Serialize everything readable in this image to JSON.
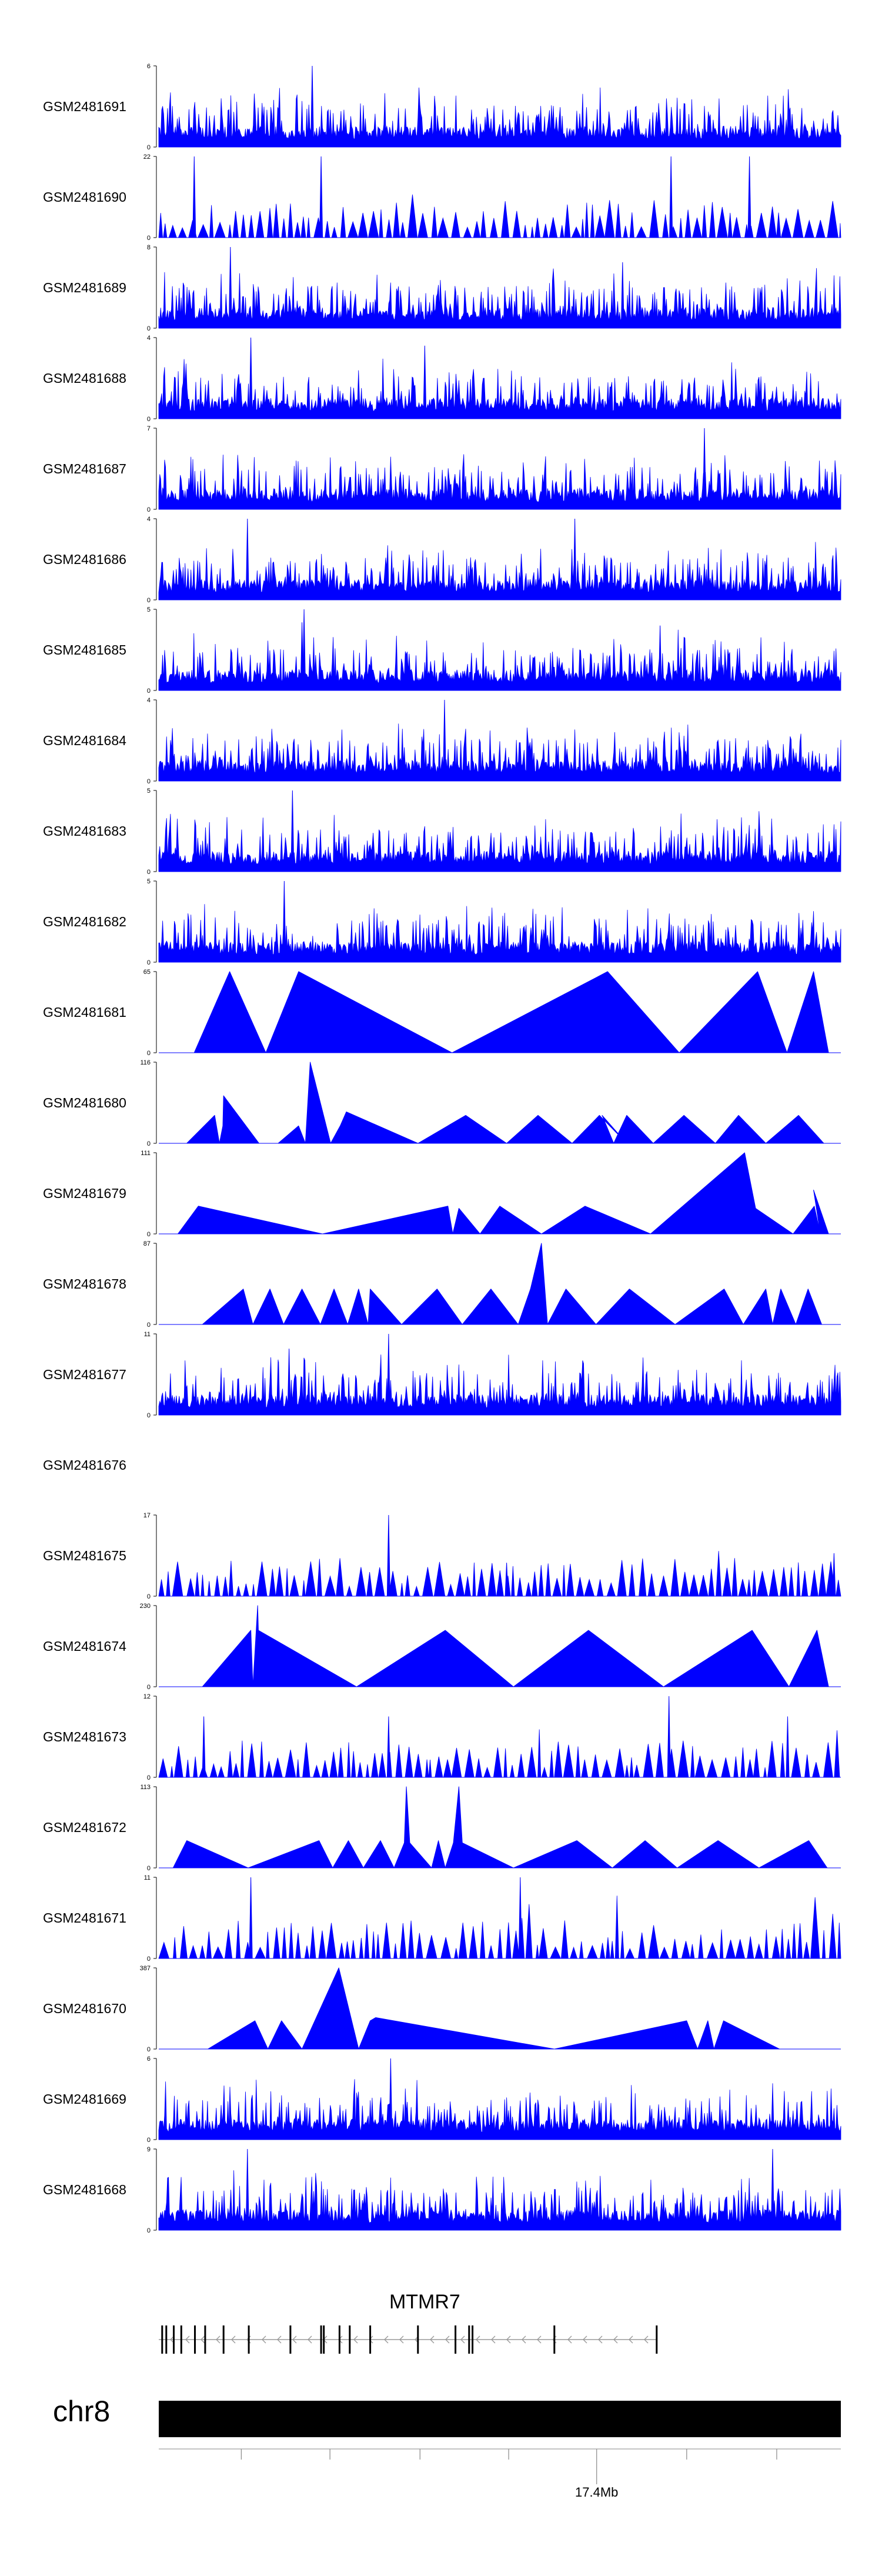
{
  "chart_data": {
    "type": "area",
    "description_kind": "genome coverage tracks",
    "fill_color": "#0000ff",
    "tracks": [
      {
        "name": "GSM2481691",
        "ymax": 6,
        "style": "dense",
        "seed": 11,
        "spikes": [
          [
            0.225,
            6.0
          ]
        ]
      },
      {
        "name": "GSM2481690",
        "ymax": 22,
        "style": "bursts",
        "seed": 12,
        "spikes": [
          [
            0.052,
            22.0
          ],
          [
            0.238,
            22.0
          ],
          [
            0.751,
            22.0
          ],
          [
            0.866,
            22.0
          ]
        ]
      },
      {
        "name": "GSM2481689",
        "ymax": 8,
        "style": "dense",
        "seed": 13,
        "spikes": [
          [
            0.105,
            8.0
          ],
          [
            0.68,
            6.5
          ]
        ]
      },
      {
        "name": "GSM2481688",
        "ymax": 4,
        "style": "dense",
        "seed": 14,
        "spikes": [
          [
            0.135,
            4.0
          ],
          [
            0.39,
            3.6
          ]
        ]
      },
      {
        "name": "GSM2481687",
        "ymax": 7,
        "style": "dense",
        "seed": 15,
        "spikes": [
          [
            0.8,
            7.0
          ]
        ]
      },
      {
        "name": "GSM2481686",
        "ymax": 4,
        "style": "dense",
        "seed": 16,
        "spikes": [
          [
            0.13,
            4.0
          ],
          [
            0.61,
            4.0
          ]
        ]
      },
      {
        "name": "GSM2481685",
        "ymax": 5,
        "style": "dense",
        "seed": 17,
        "spikes": [
          [
            0.213,
            5.0
          ],
          [
            0.21,
            4.2
          ],
          [
            0.735,
            4.0
          ]
        ]
      },
      {
        "name": "GSM2481684",
        "ymax": 4,
        "style": "dense",
        "seed": 18,
        "spikes": [
          [
            0.419,
            4.0
          ]
        ]
      },
      {
        "name": "GSM2481683",
        "ymax": 5,
        "style": "dense",
        "seed": 19,
        "spikes": [
          [
            0.196,
            5.0
          ]
        ]
      },
      {
        "name": "GSM2481682",
        "ymax": 5,
        "style": "dense",
        "seed": 20,
        "spikes": [
          [
            0.184,
            5.0
          ]
        ]
      },
      {
        "name": "GSM2481681",
        "ymax": 65,
        "style": "peaks",
        "points": [
          [
            0.052,
            0
          ],
          [
            0.104,
            65
          ],
          [
            0.157,
            0
          ],
          [
            0.157,
            0
          ],
          [
            0.205,
            65
          ],
          [
            0.43,
            0
          ],
          [
            0.43,
            0
          ],
          [
            0.658,
            65
          ],
          [
            0.763,
            0
          ],
          [
            0.763,
            0
          ],
          [
            0.878,
            65
          ],
          [
            0.921,
            0
          ],
          [
            0.921,
            0
          ],
          [
            0.96,
            65
          ],
          [
            0.982,
            0
          ]
        ]
      },
      {
        "name": "GSM2481680",
        "ymax": 116,
        "style": "peaks",
        "points": [
          [
            0.041,
            0
          ],
          [
            0.082,
            40
          ],
          [
            0.089,
            0
          ],
          [
            0.089,
            0
          ],
          [
            0.094,
            25
          ],
          [
            0.095,
            68
          ],
          [
            0.147,
            0
          ],
          [
            0.147,
            0
          ],
          [
            0.175,
            0
          ],
          [
            0.205,
            25
          ],
          [
            0.215,
            0
          ],
          [
            0.215,
            0
          ],
          [
            0.222,
            116
          ],
          [
            0.252,
            0
          ],
          [
            0.252,
            0
          ],
          [
            0.266,
            25
          ],
          [
            0.275,
            45
          ],
          [
            0.38,
            0
          ],
          [
            0.38,
            0
          ],
          [
            0.45,
            40
          ],
          [
            0.51,
            0
          ],
          [
            0.51,
            0
          ],
          [
            0.556,
            40
          ],
          [
            0.606,
            0
          ],
          [
            0.606,
            0
          ],
          [
            0.646,
            40
          ],
          [
            0.686,
            0
          ],
          [
            0.65,
            40
          ],
          [
            0.667,
            0
          ],
          [
            0.686,
            40
          ],
          [
            0.725,
            0
          ],
          [
            0.725,
            0
          ],
          [
            0.77,
            40
          ],
          [
            0.816,
            0
          ],
          [
            0.816,
            0
          ],
          [
            0.85,
            40
          ],
          [
            0.89,
            0
          ],
          [
            0.89,
            0
          ],
          [
            0.938,
            40
          ],
          [
            0.975,
            0
          ]
        ]
      },
      {
        "name": "GSM2481679",
        "ymax": 111,
        "style": "peaks",
        "points": [
          [
            0.028,
            0
          ],
          [
            0.058,
            38
          ],
          [
            0.24,
            0
          ],
          [
            0.24,
            0
          ],
          [
            0.424,
            38
          ],
          [
            0.431,
            0
          ],
          [
            0.431,
            0
          ],
          [
            0.44,
            35
          ],
          [
            0.471,
            0
          ],
          [
            0.471,
            0
          ],
          [
            0.5,
            38
          ],
          [
            0.561,
            0
          ],
          [
            0.561,
            0
          ],
          [
            0.625,
            38
          ],
          [
            0.721,
            0
          ],
          [
            0.721,
            0
          ],
          [
            0.859,
            111
          ],
          [
            0.875,
            35
          ],
          [
            0.93,
            0
          ],
          [
            0.93,
            0
          ],
          [
            0.961,
            38
          ],
          [
            0.97,
            0
          ],
          [
            0.96,
            60
          ],
          [
            0.982,
            0
          ]
        ]
      },
      {
        "name": "GSM2481678",
        "ymax": 87,
        "style": "peaks",
        "points": [
          [
            0.064,
            0
          ],
          [
            0.124,
            38
          ],
          [
            0.138,
            0
          ],
          [
            0.138,
            0
          ],
          [
            0.163,
            38
          ],
          [
            0.183,
            0
          ],
          [
            0.183,
            0
          ],
          [
            0.21,
            38
          ],
          [
            0.237,
            0
          ],
          [
            0.237,
            0
          ],
          [
            0.257,
            38
          ],
          [
            0.277,
            0
          ],
          [
            0.277,
            0
          ],
          [
            0.293,
            38
          ],
          [
            0.307,
            0
          ],
          [
            0.307,
            0
          ],
          [
            0.31,
            38
          ],
          [
            0.356,
            0
          ],
          [
            0.356,
            0
          ],
          [
            0.408,
            38
          ],
          [
            0.445,
            0
          ],
          [
            0.445,
            0
          ],
          [
            0.487,
            38
          ],
          [
            0.527,
            0
          ],
          [
            0.527,
            0
          ],
          [
            0.545,
            38
          ],
          [
            0.561,
            87
          ],
          [
            0.57,
            0
          ],
          [
            0.57,
            0
          ],
          [
            0.597,
            38
          ],
          [
            0.641,
            0
          ],
          [
            0.641,
            0
          ],
          [
            0.69,
            38
          ],
          [
            0.757,
            0
          ],
          [
            0.757,
            0
          ],
          [
            0.829,
            38
          ],
          [
            0.857,
            0
          ],
          [
            0.857,
            0
          ],
          [
            0.89,
            38
          ],
          [
            0.9,
            0
          ],
          [
            0.9,
            0
          ],
          [
            0.912,
            38
          ],
          [
            0.934,
            0
          ],
          [
            0.934,
            0
          ],
          [
            0.952,
            38
          ],
          [
            0.972,
            0
          ]
        ]
      },
      {
        "name": "GSM2481677",
        "ymax": 11,
        "style": "dense",
        "seed": 21,
        "spikes": [
          [
            0.191,
            9.0
          ],
          [
            0.175,
            7.5
          ],
          [
            0.337,
            11.0
          ]
        ]
      },
      {
        "name": "GSM2481676",
        "ymax": null,
        "style": "empty"
      },
      {
        "name": "GSM2481675",
        "ymax": 17,
        "style": "bursts",
        "seed": 22,
        "spikes": [
          [
            0.337,
            17.0
          ],
          [
            0.51,
            7
          ],
          [
            0.99,
            9
          ]
        ]
      },
      {
        "name": "GSM2481674",
        "ymax": 230,
        "style": "peaks",
        "points": [
          [
            0.064,
            0
          ],
          [
            0.135,
            160
          ],
          [
            0.138,
            0
          ],
          [
            0.145,
            230
          ],
          [
            0.146,
            160
          ],
          [
            0.29,
            0
          ],
          [
            0.29,
            0
          ],
          [
            0.42,
            160
          ],
          [
            0.52,
            0
          ],
          [
            0.52,
            0
          ],
          [
            0.63,
            160
          ],
          [
            0.74,
            0
          ],
          [
            0.74,
            0
          ],
          [
            0.87,
            160
          ],
          [
            0.924,
            0
          ],
          [
            0.924,
            0
          ],
          [
            0.965,
            160
          ],
          [
            0.982,
            0
          ]
        ]
      },
      {
        "name": "GSM2481673",
        "ymax": 12,
        "style": "bursts",
        "seed": 23,
        "spikes": [
          [
            0.066,
            9.0
          ],
          [
            0.337,
            9.0
          ],
          [
            0.748,
            12.0
          ],
          [
            0.922,
            9.0
          ]
        ]
      },
      {
        "name": "GSM2481672",
        "ymax": 113,
        "style": "peaks",
        "points": [
          [
            0.021,
            0
          ],
          [
            0.041,
            38
          ],
          [
            0.131,
            0
          ],
          [
            0.131,
            0
          ],
          [
            0.235,
            38
          ],
          [
            0.255,
            0
          ],
          [
            0.255,
            0
          ],
          [
            0.278,
            38
          ],
          [
            0.3,
            0
          ],
          [
            0.3,
            0
          ],
          [
            0.325,
            38
          ],
          [
            0.345,
            0
          ],
          [
            0.345,
            0
          ],
          [
            0.36,
            35
          ],
          [
            0.363,
            113
          ],
          [
            0.368,
            35
          ],
          [
            0.4,
            0
          ],
          [
            0.4,
            0
          ],
          [
            0.41,
            38
          ],
          [
            0.42,
            0
          ],
          [
            0.42,
            0
          ],
          [
            0.432,
            35
          ],
          [
            0.44,
            113
          ],
          [
            0.445,
            35
          ],
          [
            0.52,
            0
          ],
          [
            0.52,
            0
          ],
          [
            0.613,
            38
          ],
          [
            0.665,
            0
          ],
          [
            0.665,
            0
          ],
          [
            0.713,
            38
          ],
          [
            0.76,
            0
          ],
          [
            0.76,
            0
          ],
          [
            0.82,
            38
          ],
          [
            0.88,
            0
          ],
          [
            0.88,
            0
          ],
          [
            0.953,
            38
          ],
          [
            0.98,
            0
          ]
        ]
      },
      {
        "name": "GSM2481671",
        "ymax": 11,
        "style": "bursts",
        "seed": 24,
        "spikes": [
          [
            0.135,
            11.0
          ],
          [
            0.53,
            11.0
          ]
        ]
      },
      {
        "name": "GSM2481670",
        "ymax": 387,
        "style": "peaks",
        "points": [
          [
            0.072,
            0
          ],
          [
            0.141,
            135
          ],
          [
            0.16,
            0
          ],
          [
            0.16,
            0
          ],
          [
            0.18,
            135
          ],
          [
            0.21,
            0
          ],
          [
            0.21,
            0
          ],
          [
            0.264,
            387
          ],
          [
            0.293,
            0
          ],
          [
            0.293,
            0
          ],
          [
            0.31,
            135
          ],
          [
            0.318,
            150
          ],
          [
            0.58,
            0
          ],
          [
            0.58,
            0
          ],
          [
            0.774,
            135
          ],
          [
            0.79,
            0
          ],
          [
            0.79,
            0
          ],
          [
            0.805,
            135
          ],
          [
            0.814,
            0
          ],
          [
            0.814,
            0
          ],
          [
            0.828,
            135
          ],
          [
            0.91,
            0
          ]
        ]
      },
      {
        "name": "GSM2481669",
        "ymax": 6,
        "style": "dense",
        "seed": 25,
        "spikes": [
          [
            0.34,
            6.0
          ]
        ]
      },
      {
        "name": "GSM2481668",
        "ymax": 9,
        "style": "dense",
        "seed": 26,
        "spikes": [
          [
            0.13,
            9.0
          ],
          [
            0.9,
            9.0
          ]
        ]
      }
    ],
    "gene": {
      "name": "MTMR7",
      "strand": "-",
      "start_frac": 0.0,
      "end_frac": 0.73,
      "exons": [
        0.005,
        0.011,
        0.022,
        0.033,
        0.053,
        0.068,
        0.095,
        0.132,
        0.193,
        0.238,
        0.242,
        0.265,
        0.28,
        0.31,
        0.38,
        0.435,
        0.455,
        0.46,
        0.58,
        0.73
      ]
    },
    "ideogram": {
      "chromosome": "chr8",
      "ticks": [
        0.121,
        0.251,
        0.383,
        0.513,
        0.642,
        0.774,
        0.906
      ],
      "labelled_tick": {
        "frac": 0.642,
        "label": "17.4Mb"
      }
    }
  }
}
